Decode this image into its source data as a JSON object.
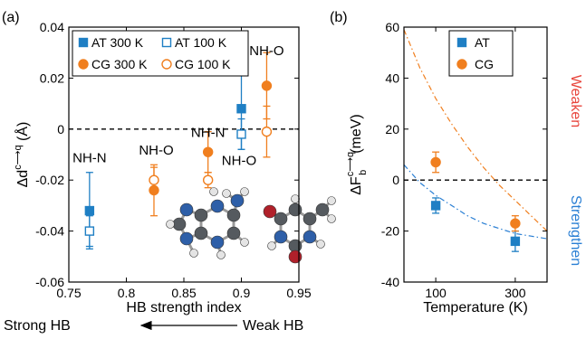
{
  "chart_data": [
    {
      "type": "scatter",
      "panel_label": "(a)",
      "xlabel": "HB strength index",
      "ylabel": "Δd",
      "ylabel_sup": "c⟶q",
      "ylabel_unit": "(Å)",
      "xlim": [
        0.75,
        0.95
      ],
      "ylim": [
        -0.06,
        0.04
      ],
      "xticks": [
        "0.75",
        "0.8",
        "0.85",
        "0.9",
        "0.95"
      ],
      "yticks": [
        "-0.06",
        "-0.04",
        "-0.02",
        "0",
        "0.02",
        "0.04"
      ],
      "reference_line_y": 0,
      "legend_position": "top-left",
      "series": [
        {
          "name": "AT 300 K",
          "color": "#1f7fc4",
          "marker": "square-filled",
          "points": [
            {
              "x": 0.768,
              "y": -0.032,
              "err": 0.015
            },
            {
              "x": 0.9,
              "y": 0.008,
              "err": 0.016
            }
          ]
        },
        {
          "name": "AT 100 K",
          "color": "#1f7fc4",
          "marker": "square-open",
          "points": [
            {
              "x": 0.768,
              "y": -0.04,
              "err": 0.006
            },
            {
              "x": 0.9,
              "y": -0.002,
              "err": 0.006
            }
          ]
        },
        {
          "name": "CG 300 K",
          "color": "#f07f1f",
          "marker": "circle-filled",
          "points": [
            {
              "x": 0.824,
              "y": -0.024,
              "err": 0.01
            },
            {
              "x": 0.871,
              "y": -0.009,
              "err": 0.008
            },
            {
              "x": 0.922,
              "y": 0.017,
              "err": 0.013
            }
          ]
        },
        {
          "name": "CG 100 K",
          "color": "#f07f1f",
          "marker": "circle-open",
          "points": [
            {
              "x": 0.824,
              "y": -0.02,
              "err": 0.005
            },
            {
              "x": 0.871,
              "y": -0.02,
              "err": 0.003
            },
            {
              "x": 0.922,
              "y": -0.001,
              "err": 0.01
            }
          ]
        }
      ],
      "annotations": [
        {
          "text": "NH-N",
          "x": 0.768,
          "y": -0.013
        },
        {
          "text": "NH-O",
          "x": 0.826,
          "y": -0.01
        },
        {
          "text": "NH-N",
          "x": 0.871,
          "y": -0.003
        },
        {
          "text": "NH-O",
          "x": 0.898,
          "y": -0.014
        },
        {
          "text": "NH-O",
          "x": 0.922,
          "y": 0.029
        }
      ],
      "bottom_arrow": {
        "left": "Strong HB",
        "right": "Weak HB"
      }
    },
    {
      "type": "scatter",
      "panel_label": "(b)",
      "xlabel": "Temperature (K)",
      "ylabel": "ΔF",
      "ylabel_sub": "b",
      "ylabel_sup": "c⟶q",
      "ylabel_unit": "(meV)",
      "xlim": [
        20,
        380
      ],
      "ylim": [
        -40,
        60
      ],
      "xticks": [
        "100",
        "300"
      ],
      "yticks": [
        "-40",
        "-20",
        "0",
        "20",
        "40",
        "60"
      ],
      "reference_line_y": 0,
      "legend_position": "top-center",
      "side_labels": [
        {
          "text": "Weaken",
          "color": "#e8453c"
        },
        {
          "text": "Strengthen",
          "color": "#2a7fd4"
        }
      ],
      "series": [
        {
          "name": "AT",
          "color": "#1f7fc4",
          "marker": "square-filled",
          "points": [
            {
              "x": 100,
              "y": -10,
              "err": 3
            },
            {
              "x": 300,
              "y": -24,
              "err": 4
            }
          ]
        },
        {
          "name": "CG",
          "color": "#f07f1f",
          "marker": "circle-filled",
          "points": [
            {
              "x": 100,
              "y": 7,
              "err": 4
            },
            {
              "x": 300,
              "y": -17,
              "err": 3
            }
          ]
        }
      ],
      "fit_curves": [
        {
          "color": "#f07f1f",
          "x": [
            20,
            60,
            100,
            140,
            180,
            220,
            260,
            300,
            340,
            380
          ],
          "y": [
            59,
            44,
            32,
            22,
            13,
            5,
            -2,
            -8,
            -14,
            -20
          ]
        },
        {
          "color": "#2a7fd4",
          "x": [
            20,
            60,
            100,
            140,
            180,
            220,
            260,
            300,
            340,
            380
          ],
          "y": [
            6,
            -1,
            -6,
            -10,
            -14,
            -17,
            -19,
            -21,
            -22,
            -23
          ]
        }
      ]
    }
  ]
}
